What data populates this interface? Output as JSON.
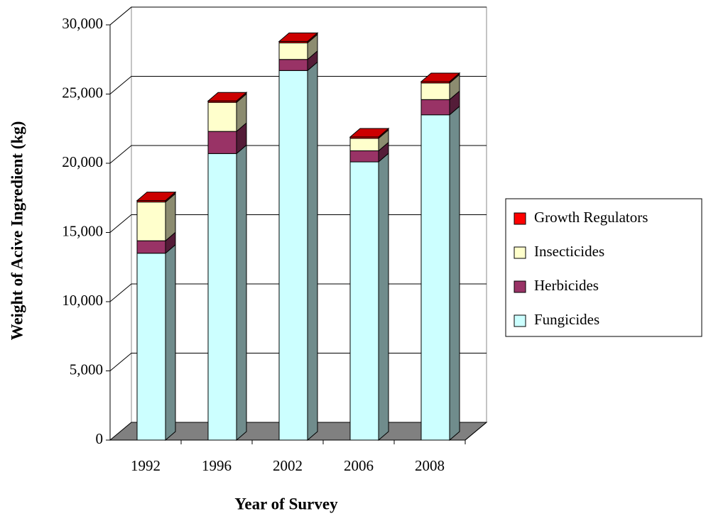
{
  "chart_data": {
    "type": "bar3d_stacked",
    "x_label": "Year of Survey",
    "y_label": "Weight of Acive Ingredient (kg)",
    "categories": [
      "1992",
      "1996",
      "2002",
      "2006",
      "2008"
    ],
    "series": [
      {
        "name": "Fungicides",
        "color": "#ccffff",
        "values": [
          13500,
          20700,
          26700,
          20100,
          23500
        ]
      },
      {
        "name": "Herbicides",
        "color": "#993366",
        "values": [
          900,
          1600,
          800,
          800,
          1100
        ]
      },
      {
        "name": "Insecticides",
        "color": "#ffffcc",
        "values": [
          2800,
          2100,
          1200,
          900,
          1200
        ]
      },
      {
        "name": "Growth Regulators",
        "color": "#ff0000",
        "values": [
          100,
          100,
          100,
          100,
          100
        ]
      }
    ],
    "ylim": [
      0,
      30000
    ],
    "yticks": [
      {
        "value": 0,
        "label": "0"
      },
      {
        "value": 5000,
        "label": "5,000"
      },
      {
        "value": 10000,
        "label": "10,000"
      },
      {
        "value": 15000,
        "label": "15,000"
      },
      {
        "value": 20000,
        "label": "20,000"
      },
      {
        "value": 25000,
        "label": "25,000"
      },
      {
        "value": 30000,
        "label": "30,000"
      }
    ],
    "grid": true,
    "legend": "right"
  }
}
